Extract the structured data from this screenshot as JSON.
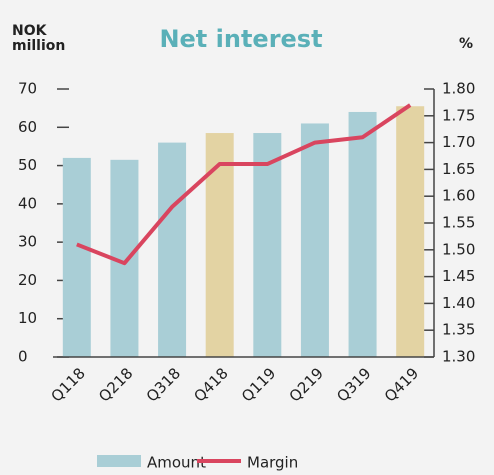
{
  "chart_data": {
    "type": "bar_line",
    "title": "Net interest",
    "ylabel": [
      "NOK",
      "million"
    ],
    "y2label": "%",
    "categories": [
      "Q118",
      "Q218",
      "Q318",
      "Q418",
      "Q119",
      "Q219",
      "Q319",
      "Q419"
    ],
    "series": [
      {
        "name": "Amount",
        "type": "bar",
        "color": "#a9ced6",
        "colors": [
          "#a9ced6",
          "#a9ced6",
          "#a9ced6",
          "#e3d3a3",
          "#a9ced6",
          "#a9ced6",
          "#a9ced6",
          "#e3d3a3"
        ],
        "values": [
          52,
          51.5,
          56,
          58.5,
          58.5,
          61,
          64,
          65.5
        ]
      },
      {
        "name": "Margin",
        "type": "line",
        "axis": "y2",
        "color": "#d9455f",
        "values": [
          1.51,
          1.475,
          1.58,
          1.66,
          1.66,
          1.7,
          1.71,
          1.77
        ]
      }
    ],
    "ylim": [
      0,
      70
    ],
    "yticks": [
      0,
      10,
      20,
      30,
      40,
      50,
      60,
      70
    ],
    "y2lim": [
      1.3,
      1.8
    ],
    "y2ticks": [
      {
        "value": 1.3,
        "label": "1.30"
      },
      {
        "value": 1.35,
        "label": "1.35"
      },
      {
        "value": 1.4,
        "label": "1.40"
      },
      {
        "value": 1.45,
        "label": "1.45"
      },
      {
        "value": 1.5,
        "label": "1.50"
      },
      {
        "value": 1.55,
        "label": "1.55"
      },
      {
        "value": 1.6,
        "label": "1.60"
      },
      {
        "value": 1.65,
        "label": "1.65"
      },
      {
        "value": 1.7,
        "label": "1.70"
      },
      {
        "value": 1.75,
        "label": "1.75"
      },
      {
        "value": 1.8,
        "label": "1.80"
      }
    ],
    "legend": "bottom"
  }
}
